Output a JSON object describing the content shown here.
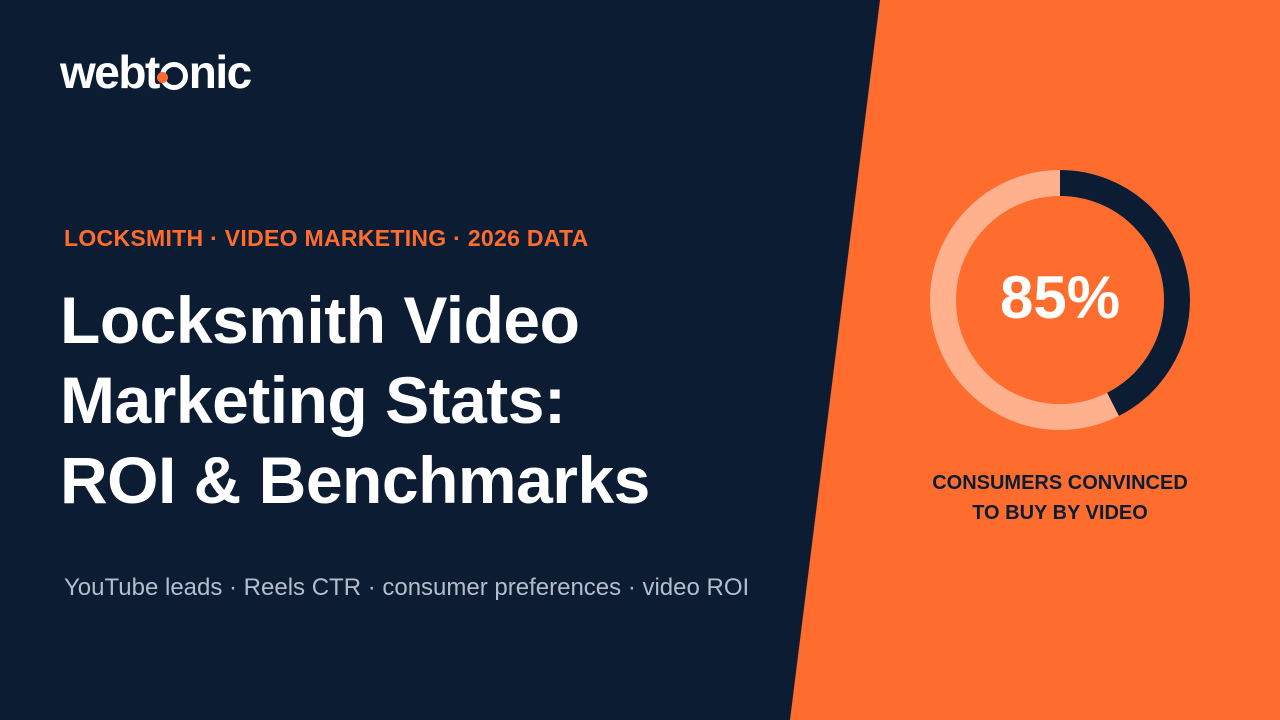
{
  "brand": {
    "name_part1": "webt",
    "name_part2": "nic"
  },
  "eyebrow": "LOCKSMITH · VIDEO MARKETING · 2026 DATA",
  "title_lines": [
    "Locksmith Video",
    "Marketing Stats:",
    "ROI & Benchmarks"
  ],
  "subtitle": "YouTube leads · Reels CTR · consumer preferences · video ROI",
  "stat": {
    "value_label": "85%",
    "percent": 85,
    "caption_lines": [
      "CONSUMERS CONVINCED",
      "TO BUY BY VIDEO"
    ]
  },
  "colors": {
    "navy": "#0c1c33",
    "orange": "#ff6d2e",
    "ring_track": "#ffb08c",
    "white": "#ffffff"
  }
}
